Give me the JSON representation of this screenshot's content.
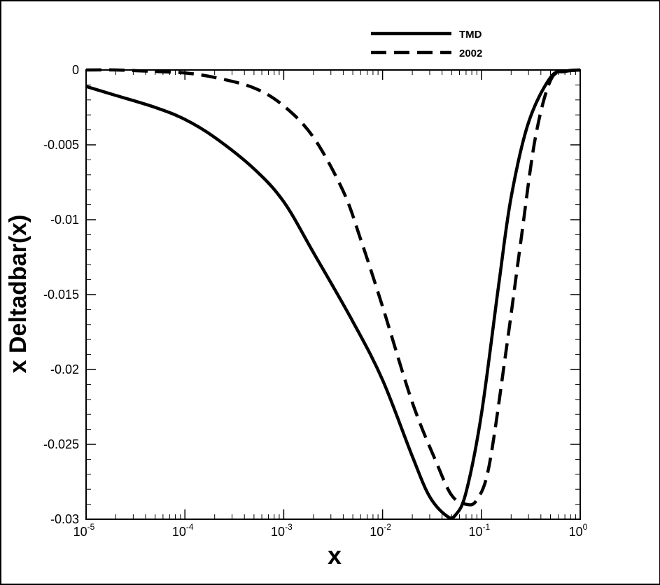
{
  "chart_data": {
    "type": "line",
    "xlabel": "x",
    "ylabel": "x Deltadbar(x)",
    "xscale": "log",
    "xlim": [
      1e-05,
      1
    ],
    "ylim": [
      -0.03,
      0
    ],
    "x_ticks": [
      {
        "base": "10",
        "exp": "-5"
      },
      {
        "base": "10",
        "exp": "-4"
      },
      {
        "base": "10",
        "exp": "-3"
      },
      {
        "base": "10",
        "exp": "-2"
      },
      {
        "base": "10",
        "exp": "-1"
      },
      {
        "base": "10",
        "exp": "0"
      }
    ],
    "y_ticks": [
      "0",
      "-0.005",
      "-0.01",
      "-0.015",
      "-0.02",
      "-0.025",
      "-0.03"
    ],
    "legend_position": "top-right",
    "grid": false,
    "series": [
      {
        "name": "TMD",
        "style": "solid",
        "x": [
          1e-05,
          2e-05,
          5e-05,
          0.0001,
          0.0002,
          0.0005,
          0.001,
          0.002,
          0.005,
          0.01,
          0.02,
          0.03,
          0.045,
          0.055,
          0.07,
          0.1,
          0.15,
          0.2,
          0.3,
          0.5,
          0.7,
          1
        ],
        "y": [
          -0.0011,
          -0.0017,
          -0.0025,
          -0.0033,
          -0.0045,
          -0.0066,
          -0.0088,
          -0.0122,
          -0.0168,
          -0.0207,
          -0.0258,
          -0.0285,
          -0.0298,
          -0.0297,
          -0.0282,
          -0.023,
          -0.0143,
          -0.0085,
          -0.0035,
          -0.0005,
          -0.0001,
          0
        ]
      },
      {
        "name": "2002",
        "style": "dashed",
        "x": [
          1e-05,
          2e-05,
          5e-05,
          0.0001,
          0.0002,
          0.0005,
          0.001,
          0.002,
          0.004,
          0.006,
          0.01,
          0.02,
          0.035,
          0.05,
          0.07,
          0.09,
          0.12,
          0.18,
          0.25,
          0.35,
          0.5,
          0.7,
          1
        ],
        "y": [
          0,
          0,
          -0.0001,
          -0.0002,
          -0.0005,
          -0.0012,
          -0.0024,
          -0.0045,
          -0.0081,
          -0.0113,
          -0.0158,
          -0.0222,
          -0.0262,
          -0.0284,
          -0.029,
          -0.0287,
          -0.0264,
          -0.0185,
          -0.0115,
          -0.0046,
          -0.0007,
          -0.0001,
          0
        ]
      }
    ]
  }
}
